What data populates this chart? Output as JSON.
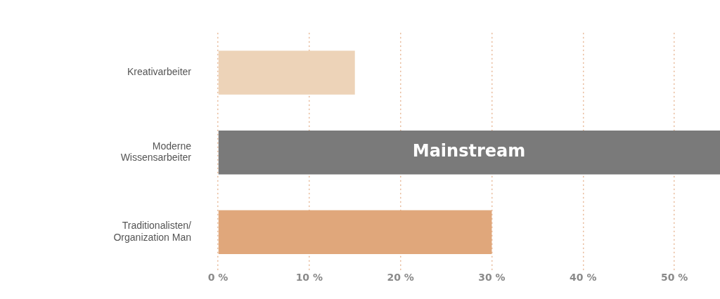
{
  "chart_data": {
    "type": "bar",
    "orientation": "horizontal",
    "categories": [
      "Kreativarbeiter",
      "Moderne\nWissensarbeiter",
      "Traditionalisten/\nOrganization Man"
    ],
    "values": [
      15,
      55,
      30
    ],
    "colors": [
      "#edd3b8",
      "#7a7a7a",
      "#e0a77b"
    ],
    "xlim": [
      0,
      55
    ],
    "xticks": [
      {
        "value": 0,
        "label": "0 %"
      },
      {
        "value": 10,
        "label": "10 %"
      },
      {
        "value": 20,
        "label": "20 %"
      },
      {
        "value": 30,
        "label": "30 %"
      },
      {
        "value": 40,
        "label": "40 %"
      },
      {
        "value": 50,
        "label": "50 %"
      }
    ],
    "grid": "x",
    "annotations": [
      "Mainstream"
    ]
  }
}
